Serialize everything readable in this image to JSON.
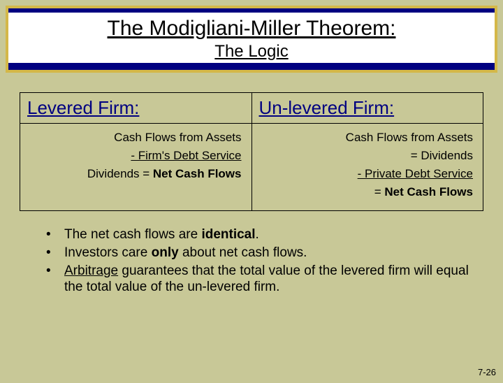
{
  "header": {
    "title": "The Modigliani-Miller Theorem:",
    "subtitle": "The Logic"
  },
  "table": {
    "left_header": "Levered Firm:",
    "right_header": "Un-levered Firm:",
    "left_rows": [
      {
        "text": "Cash Flows from Assets",
        "underlined": false
      },
      {
        "text": "- Firm's Debt Service",
        "underlined": true
      },
      {
        "text_prefix": "Dividends = ",
        "text_bold": "Net Cash Flows",
        "underlined": false
      }
    ],
    "right_rows": [
      {
        "text": "Cash Flows from Assets",
        "underlined": false
      },
      {
        "text": "= Dividends",
        "underlined": false
      },
      {
        "text": "- Private Debt Service",
        "underlined": true
      },
      {
        "text_prefix": "= ",
        "text_bold": "Net Cash Flows",
        "underlined": false
      }
    ]
  },
  "bullets": {
    "b1_a": "The net cash flows are ",
    "b1_b": "identical",
    "b1_c": ".",
    "b2_a": "Investors care ",
    "b2_b": "only",
    "b2_c": " about net cash flows.",
    "b3_a": "Arbitrage",
    "b3_b": " guarantees that the total value of the levered firm will equal the total value of the un-levered firm."
  },
  "page_number": "7-26",
  "colors": {
    "background": "#c8c897",
    "header_bg": "#000080",
    "header_border": "#d4b848",
    "accent_text": "#000080"
  }
}
